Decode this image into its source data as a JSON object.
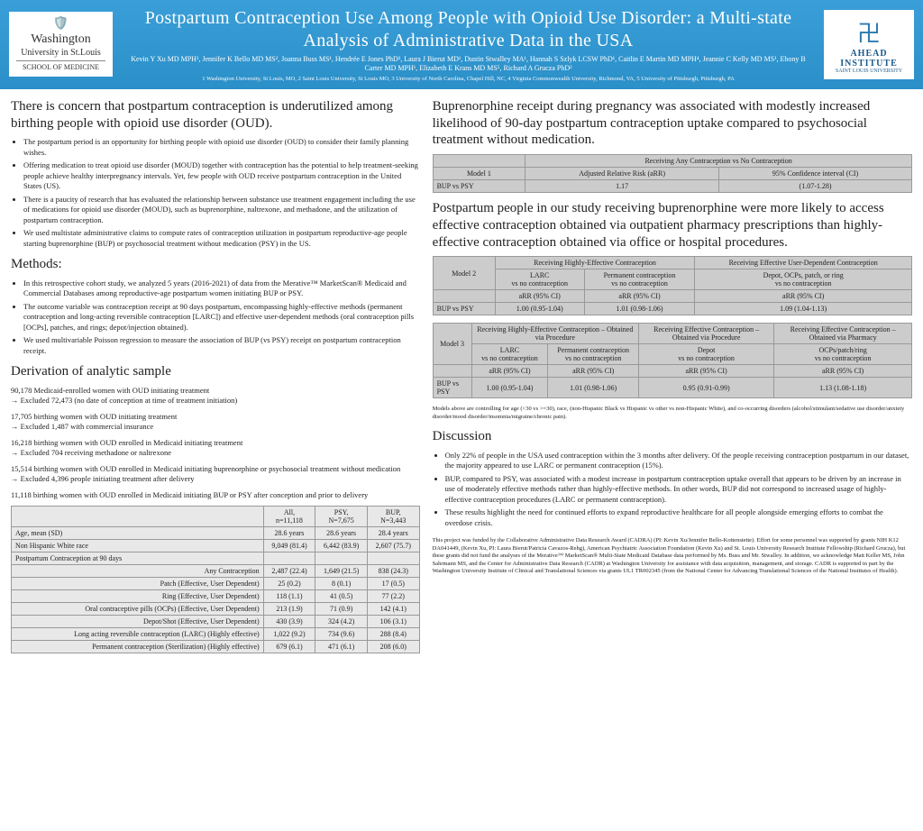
{
  "header": {
    "logo_left": {
      "l1": "Washington",
      "l2": "University in St.Louis",
      "l3": "SCHOOL OF MEDICINE"
    },
    "title": "Postpartum Contraception Use Among People with Opioid Use Disorder: a Multi-state Analysis of Administrative Data in the USA",
    "authors": "Kevin Y Xu MD MPH¹, Jennifer K Bello MD MS², Joanna Buss MS¹, Hendrée E Jones PhD³, Laura J Bierut MD¹, Dustin Stwalley MA¹, Hannah S Szlyk LCSW PhD¹, Caitlin E Martin MD MPH⁴, Jeannie C Kelly MD MS¹, Ebony B Carter MD MPH¹, Elizabeth E Krans MD MS⁵, Richard A Grucza PhD²",
    "affil": "1 Washington University, St Louis, MO, 2 Saint Louis University, St Louis MO, 3 University of North Carolina, Chapel Hill, NC, 4 Virginia Commonwealth University, Richmond, VA, 5 University of Pittsburgh, Pittsburgh, PA",
    "logo_right": {
      "l1": "AHEAD",
      "l2": "INSTITUTE",
      "l3": "SAINT LOUIS UNIVERSITY"
    }
  },
  "left": {
    "intro_h": "There is concern that postpartum contraception is underutilized among birthing people with opioid use disorder (OUD).",
    "intro": [
      "The postpartum period is an opportunity for birthing people with opioid use disorder (OUD) to consider their family planning wishes.",
      "Offering medication to treat opioid use disorder (MOUD) together with contraception has the potential to help treatment-seeking people achieve healthy interpregnancy intervals. Yet, few people with OUD receive postpartum contraception in the United States (US).",
      "There is a paucity of research that has evaluated the relationship between substance use treatment engagement including the use of medications for opioid use disorder (MOUD), such as buprenorphine, naltrexone, and methadone, and the utilization of postpartum contraception.",
      "We used multistate administrative claims to compute rates of contraception utilization in postpartum reproductive-age people starting buprenorphine (BUP) or psychosocial treatment without medication (PSY) in the US."
    ],
    "methods_h": "Methods:",
    "methods": [
      "In this retrospective cohort study, we analyzed 5 years (2016-2021) of data from the Merative™ MarketScan® Medicaid and Commercial Databases among reproductive-age postpartum women initiating BUP or PSY.",
      "The outcome variable was contraception receipt at 90 days postpartum, encompassing highly-effective methods (permanent contraception and long-acting reversible contraception [LARC]) and effective user-dependent methods (oral contraception pills [OCPs], patches, and rings; depot/injection obtained).",
      "We used multivariable Poisson regression to measure the association of BUP (vs PSY) receipt on postpartum contraception receipt."
    ],
    "deriv_h": "Derivation of analytic sample",
    "deriv": [
      "90,178 Medicaid-enrolled women with OUD initiating treatment\n→ Excluded 72,473 (no date of conception at time of treatment initiation)",
      "17,705 birthing women with OUD initiating treatment\n→ Excluded 1,487 with commercial insurance",
      "16,218 birthing women with OUD enrolled in Medicaid initiating treatment\n→ Excluded 704 receiving methadone or naltrexone",
      "15,514 birthing women with OUD enrolled in Medicaid initiating buprenorphine or psychosocial treatment without medication\n→ Excluded 4,396 people initiating treatment after delivery",
      "11,118 birthing women with OUD enrolled in Medicaid initiating BUP or PSY after conception and prior to delivery"
    ],
    "demo": {
      "cols": [
        "",
        "All,\nn=11,118",
        "PSY,\nN=7,675",
        "BUP,\nN=3,443"
      ],
      "rows": [
        [
          "Age, mean (SD)",
          "28.6 years",
          "28.6 years",
          "28.4 years"
        ],
        [
          "Non Hispanic White race",
          "9,049 (81.4)",
          "6,442 (83.9)",
          "2,607 (75.7)"
        ],
        [
          "Postpartum Contraception at 90 days",
          "",
          "",
          ""
        ],
        [
          "Any Contraception",
          "2,487 (22.4)",
          "1,649 (21.5)",
          "838 (24.3)"
        ],
        [
          "Patch (Effective, User Dependent)",
          "25 (0.2)",
          "8 (0.1)",
          "17 (0.5)"
        ],
        [
          "Ring (Effective, User Dependent)",
          "118 (1.1)",
          "41 (0.5)",
          "77 (2.2)"
        ],
        [
          "Oral contraceptive pills (OCPs) (Effective, User Dependent)",
          "213 (1.9)",
          "71 (0.9)",
          "142 (4.1)"
        ],
        [
          "Depot/Shot (Effective, User Dependent)",
          "430 (3.9)",
          "324 (4.2)",
          "106 (3.1)"
        ],
        [
          "Long acting reversible contraception (LARC) (Highly effective)",
          "1,022 (9.2)",
          "734 (9.6)",
          "288 (8.4)"
        ],
        [
          "Permanent contraception (Sterilization) (Highly effective)",
          "679 (6.1)",
          "471 (6.1)",
          "208 (6.0)"
        ]
      ]
    }
  },
  "right": {
    "find1_h": "Buprenorphine receipt during pregnancy was associated with modestly increased likelihood of 90-day postpartum contraception uptake compared to psychosocial treatment without medication.",
    "t1": {
      "title": "Receiving Any Contraception vs No Contraception",
      "h1": "Model 1",
      "h2": "Adjusted Relative Risk (aRR)",
      "h3": "95% Confidence interval (CI)",
      "r": "BUP vs PSY",
      "v1": "1.17",
      "v2": "(1.07-1.28)"
    },
    "find2_h": "Postpartum people in our study receiving buprenorphine were more likely to access effective contraception obtained via outpatient pharmacy prescriptions than highly-effective contraception obtained via office or hospital procedures.",
    "t2": {
      "g1": "Receiving Highly-Effective Contraception",
      "g2": "Receiving Effective User-Dependent Contraception",
      "c1": "LARC\nvs no contraception",
      "c2": "Permanent contraception\nvs no contraception",
      "c3": "Depot, OCPs, patch, or ring\nvs no contraception",
      "m": "Model 2",
      "arr": "aRR (95% CI)",
      "r": "BUP vs PSY",
      "v1": "1.00 (0.95-1.04)",
      "v2": "1.01 (0.98-1.06)",
      "v3": "1.09 (1.04-1.13)"
    },
    "t3": {
      "g1": "Receiving Highly-Effective Contraception – Obtained via Procedure",
      "g2": "Receiving Effective Contraception –Obtained via Procedure",
      "g3": "Receiving Effective Contraception –Obtained via Pharmacy",
      "c1": "LARC\nvs no contraception",
      "c2": "Permanent contraception\nvs no contraception",
      "c3": "Depot\nvs no contraception",
      "c4": "OCPs/patch/ring\nvs no contraception",
      "m": "Model 3",
      "arr": "aRR (95% CI)",
      "r": "BUP vs PSY",
      "v1": "1.00 (0.95-1.04)",
      "v2": "1.01 (0.98-1.06)",
      "v3": "0.95 (0.91-0.99)",
      "v4": "1.13 (1.08-1.18)"
    },
    "note": "Models above are controlling for age (<30 vs >=30), race, (non-Hispanic Black vs Hispanic vs other vs non-Hispanic White), and co-occurring disorders (alcohol/stimulant/sedative use disorder/anxiety disorder/mood disorder/insomnia/migraine/chronic pain).",
    "disc_h": "Discussion",
    "disc": [
      "Only 22% of people in the USA used contraception within the 3 months after delivery. Of the people receiving contraception postpartum in our dataset, the majority appeared to use LARC or permanent contraception (15%).",
      "BUP, compared to PSY, was associated with a modest increase in postpartum contraception uptake overall that appears to be driven by an increase in use of moderately effective methods rather than highly-effective methods. In other words, BUP did not correspond to increased usage of highly-effective contraception procedures (LARC or permanent contraception).",
      "These results highlight the need for continued efforts to expand reproductive healthcare for all people alongside emerging efforts to combat the overdose crisis."
    ],
    "funding": "This project was funded by the Collaborative Administrative Data Research Award (CADRA) (PI: Kevin Xu/Jennifer Bello-Kottenstette). Effort for some personnel was supported by grants NIH K12 DA041449, (Kevin Xu, PI: Laura Bierut/Patricia Cavazos-Rehg), American Psychiatric Association Foundation (Kevin Xu) and St. Louis University Research Institute Fellowship (Richard Grucza), but these grants did not fund the analyses of the Merative™ MarketScan® Multi-State Medicaid Database data performed by Ms. Buss and Mr. Stwalley. In addition, we acknowledge Matt Keller MS, John Sahrmann MS, and the Center for Administrative Data Research (CADR) at Washington University for assistance with data acquisition, management, and storage. CADR is supported in part by the Washington University Institute of Clinical and Translational Sciences via grants UL1 TR002345 (from the National Center for Advancing Translational Sciences of the National Institutes of Health)."
  }
}
